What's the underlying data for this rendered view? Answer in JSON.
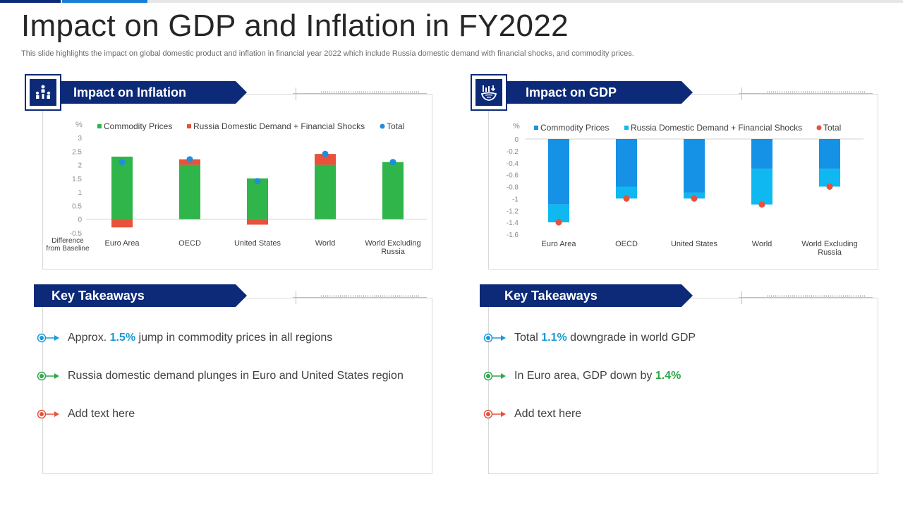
{
  "title": "Impact on GDP and Inflation in FY2022",
  "subtitle": "This slide highlights the impact on global domestic product and inflation in financial year 2022 which include Russia domestic demand with financial shocks, and commodity prices.",
  "colors": {
    "navy": "#0c2a78",
    "accent_blue": "#1a7fd6",
    "commodity_green": "#2fb54a",
    "russia_red": "#e8513a",
    "total_blue": "#1e8fdc",
    "gdp_commodity": "#1592e6",
    "gdp_russia": "#0fb8f0",
    "gdp_total": "#e8513a"
  },
  "inflation_panel": {
    "heading": "Impact on Inflation",
    "icon": "people-chart-icon"
  },
  "gdp_panel": {
    "heading": "Impact on GDP",
    "icon": "globe-chart-icon"
  },
  "chart_data": [
    {
      "type": "bar",
      "stacked": true,
      "unit_label": "%",
      "y_axis_title": "Difference from Baseline",
      "ylim": [
        -0.5,
        3
      ],
      "yticks": [
        "3",
        "2.5",
        "2",
        "1.5",
        "1",
        "0.5",
        "0",
        "-0.5"
      ],
      "categories": [
        "Euro Area",
        "OECD",
        "United States",
        "World",
        "World Excluding Russia"
      ],
      "series": [
        {
          "name": "Commodity Prices",
          "kind": "bar",
          "values": [
            2.3,
            2.0,
            1.5,
            2.0,
            2.1
          ]
        },
        {
          "name": "Russia Domestic Demand + Financial Shocks",
          "kind": "bar",
          "values": [
            -0.3,
            0.2,
            -0.2,
            0.4,
            0.0
          ]
        },
        {
          "name": "Total",
          "kind": "marker",
          "values": [
            2.1,
            2.2,
            1.4,
            2.4,
            2.1
          ]
        }
      ],
      "legend_position": "top",
      "grid": false
    },
    {
      "type": "bar",
      "stacked": true,
      "unit_label": "%",
      "ylim": [
        -1.6,
        0
      ],
      "yticks": [
        "0",
        "-0.2",
        "-0.4",
        "-0.6",
        "-0.8",
        "-1",
        "-1.2",
        "-1.4",
        "-1.6"
      ],
      "categories": [
        "Euro Area",
        "OECD",
        "United States",
        "World",
        "World Excluding Russia"
      ],
      "series": [
        {
          "name": "Commodity Prices",
          "kind": "bar",
          "values": [
            -1.1,
            -0.8,
            -0.9,
            -0.5,
            -0.5
          ]
        },
        {
          "name": "Russia Domestic Demand + Financial Shocks",
          "kind": "bar",
          "values": [
            -0.3,
            -0.2,
            -0.1,
            -0.6,
            -0.3
          ]
        },
        {
          "name": "Total",
          "kind": "marker",
          "values": [
            -1.4,
            -1.0,
            -1.0,
            -1.1,
            -0.8
          ]
        }
      ],
      "legend_position": "top",
      "grid": false
    }
  ],
  "takeaways_left": {
    "heading": "Key Takeaways",
    "items": [
      {
        "pre": "Approx.",
        "highlight": "1.5%",
        "post": "jump in commodity prices in all regions",
        "color": "#1a9ad6"
      },
      {
        "pre": "Russia domestic demand plunges in Euro and United States region",
        "highlight": "",
        "post": "",
        "color": "#2ea84a"
      },
      {
        "pre": "Add text here",
        "highlight": "",
        "post": "",
        "color": "#e8513a"
      }
    ]
  },
  "takeaways_right": {
    "heading": "Key Takeaways",
    "items": [
      {
        "pre": "Total",
        "highlight": "1.1%",
        "post": "downgrade in world GDP",
        "color": "#1a9ad6"
      },
      {
        "pre": "In Euro area, GDP down by",
        "highlight": "1.4%",
        "post": "",
        "color": "#2ea84a"
      },
      {
        "pre": "Add text here",
        "highlight": "",
        "post": "",
        "color": "#e8513a"
      }
    ]
  }
}
